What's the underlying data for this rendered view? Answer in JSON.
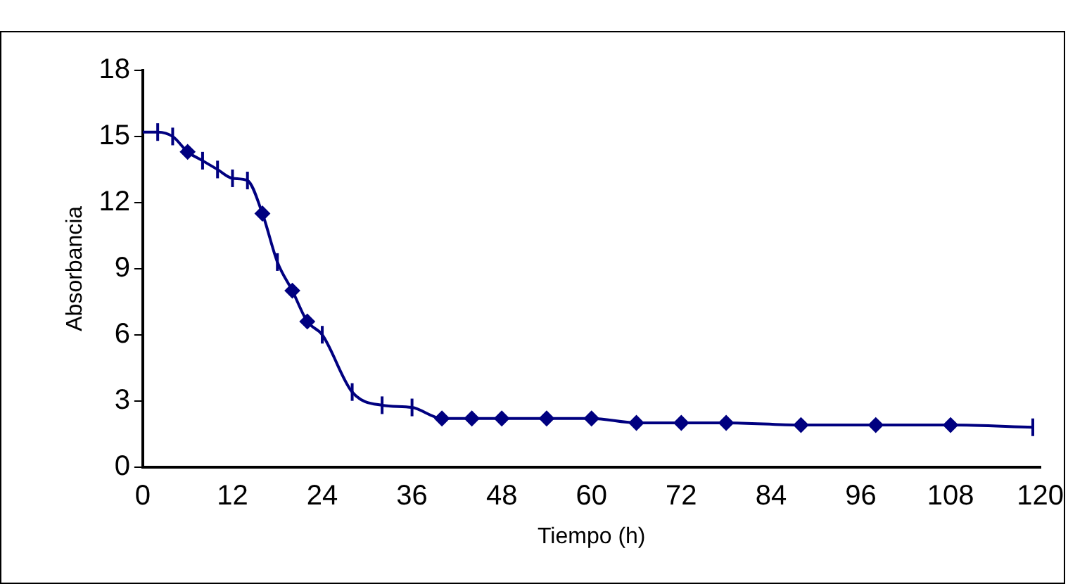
{
  "chart_data": {
    "type": "line",
    "xlabel": "Tiempo (h)",
    "ylabel": "Absorbancia",
    "xlim": [
      0,
      120
    ],
    "xticks": [
      0,
      12,
      24,
      36,
      48,
      60,
      72,
      84,
      96,
      108,
      120
    ],
    "ylim": [
      0,
      18
    ],
    "yticks": [
      0,
      3,
      6,
      9,
      12,
      15,
      18
    ],
    "grid": false,
    "legend": false,
    "series": [
      {
        "type": "line",
        "color": "#000080",
        "marker": "none",
        "x": [
          0,
          2,
          4,
          6,
          8,
          10,
          12,
          14,
          16,
          18,
          20,
          22,
          24,
          28,
          32,
          36,
          40,
          44,
          48,
          54,
          60,
          66,
          72,
          78,
          88,
          98,
          108,
          119
        ],
        "values": [
          15.2,
          15.2,
          15.0,
          14.3,
          13.9,
          13.5,
          13.1,
          13.0,
          11.5,
          9.3,
          8.0,
          6.6,
          6.0,
          3.4,
          2.8,
          2.7,
          2.2,
          2.2,
          2.2,
          2.2,
          2.2,
          2.0,
          2.0,
          2.0,
          1.9,
          1.9,
          1.9,
          1.8
        ],
        "errors": [
          null,
          0.4,
          0.4,
          null,
          0.4,
          0.4,
          0.4,
          0.4,
          null,
          0.4,
          null,
          null,
          0.4,
          0.4,
          0.4,
          0.4,
          null,
          null,
          null,
          null,
          null,
          null,
          null,
          null,
          null,
          null,
          null,
          0.4
        ]
      },
      {
        "type": "scatter",
        "color": "#000080",
        "marker": "diamond",
        "x": [
          6,
          16,
          20,
          22,
          40,
          44,
          48,
          54,
          60,
          66,
          72,
          78,
          88,
          98,
          108
        ],
        "values": [
          14.3,
          11.5,
          8.0,
          6.6,
          2.2,
          2.2,
          2.2,
          2.2,
          2.2,
          2.0,
          2.0,
          2.0,
          1.9,
          1.9,
          1.9
        ]
      }
    ]
  }
}
